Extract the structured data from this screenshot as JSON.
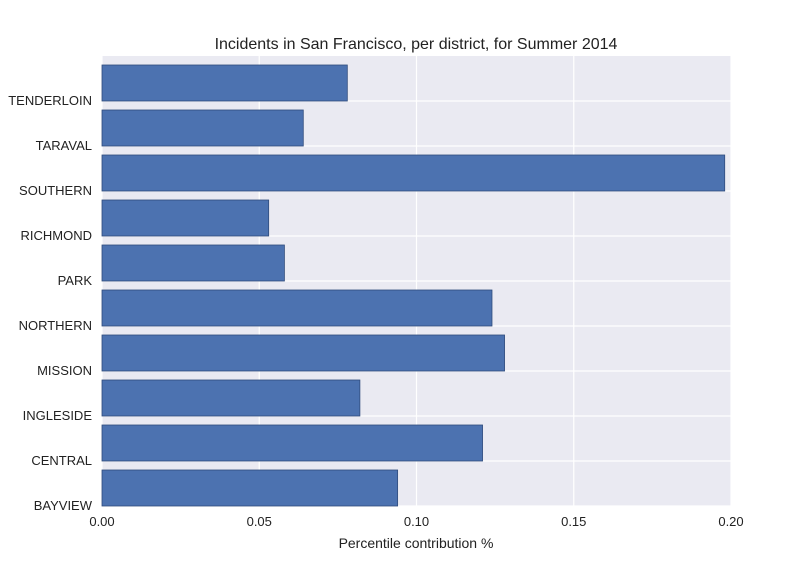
{
  "chart_data": {
    "type": "bar",
    "orientation": "horizontal",
    "title": "Incidents in San Francisco, per district, for Summer 2014",
    "xlabel": "Percentile contribution %",
    "ylabel": "",
    "xlim": [
      0,
      0.2
    ],
    "xticks": [
      "0.00",
      "0.05",
      "0.10",
      "0.15",
      "0.20"
    ],
    "xtick_values": [
      0,
      0.05,
      0.1,
      0.15,
      0.2
    ],
    "categories": [
      "BAYVIEW",
      "CENTRAL",
      "INGLESIDE",
      "MISSION",
      "NORTHERN",
      "PARK",
      "RICHMOND",
      "SOUTHERN",
      "TARAVAL",
      "TENDERLOIN"
    ],
    "values": [
      0.094,
      0.121,
      0.082,
      0.128,
      0.124,
      0.058,
      0.053,
      0.198,
      0.064,
      0.078
    ],
    "grid": true,
    "colors": {
      "bar": "#4c72b0",
      "bar_edge": "#2f4b7c",
      "plot_bg": "#eaeaf2",
      "grid": "#ffffff"
    }
  }
}
